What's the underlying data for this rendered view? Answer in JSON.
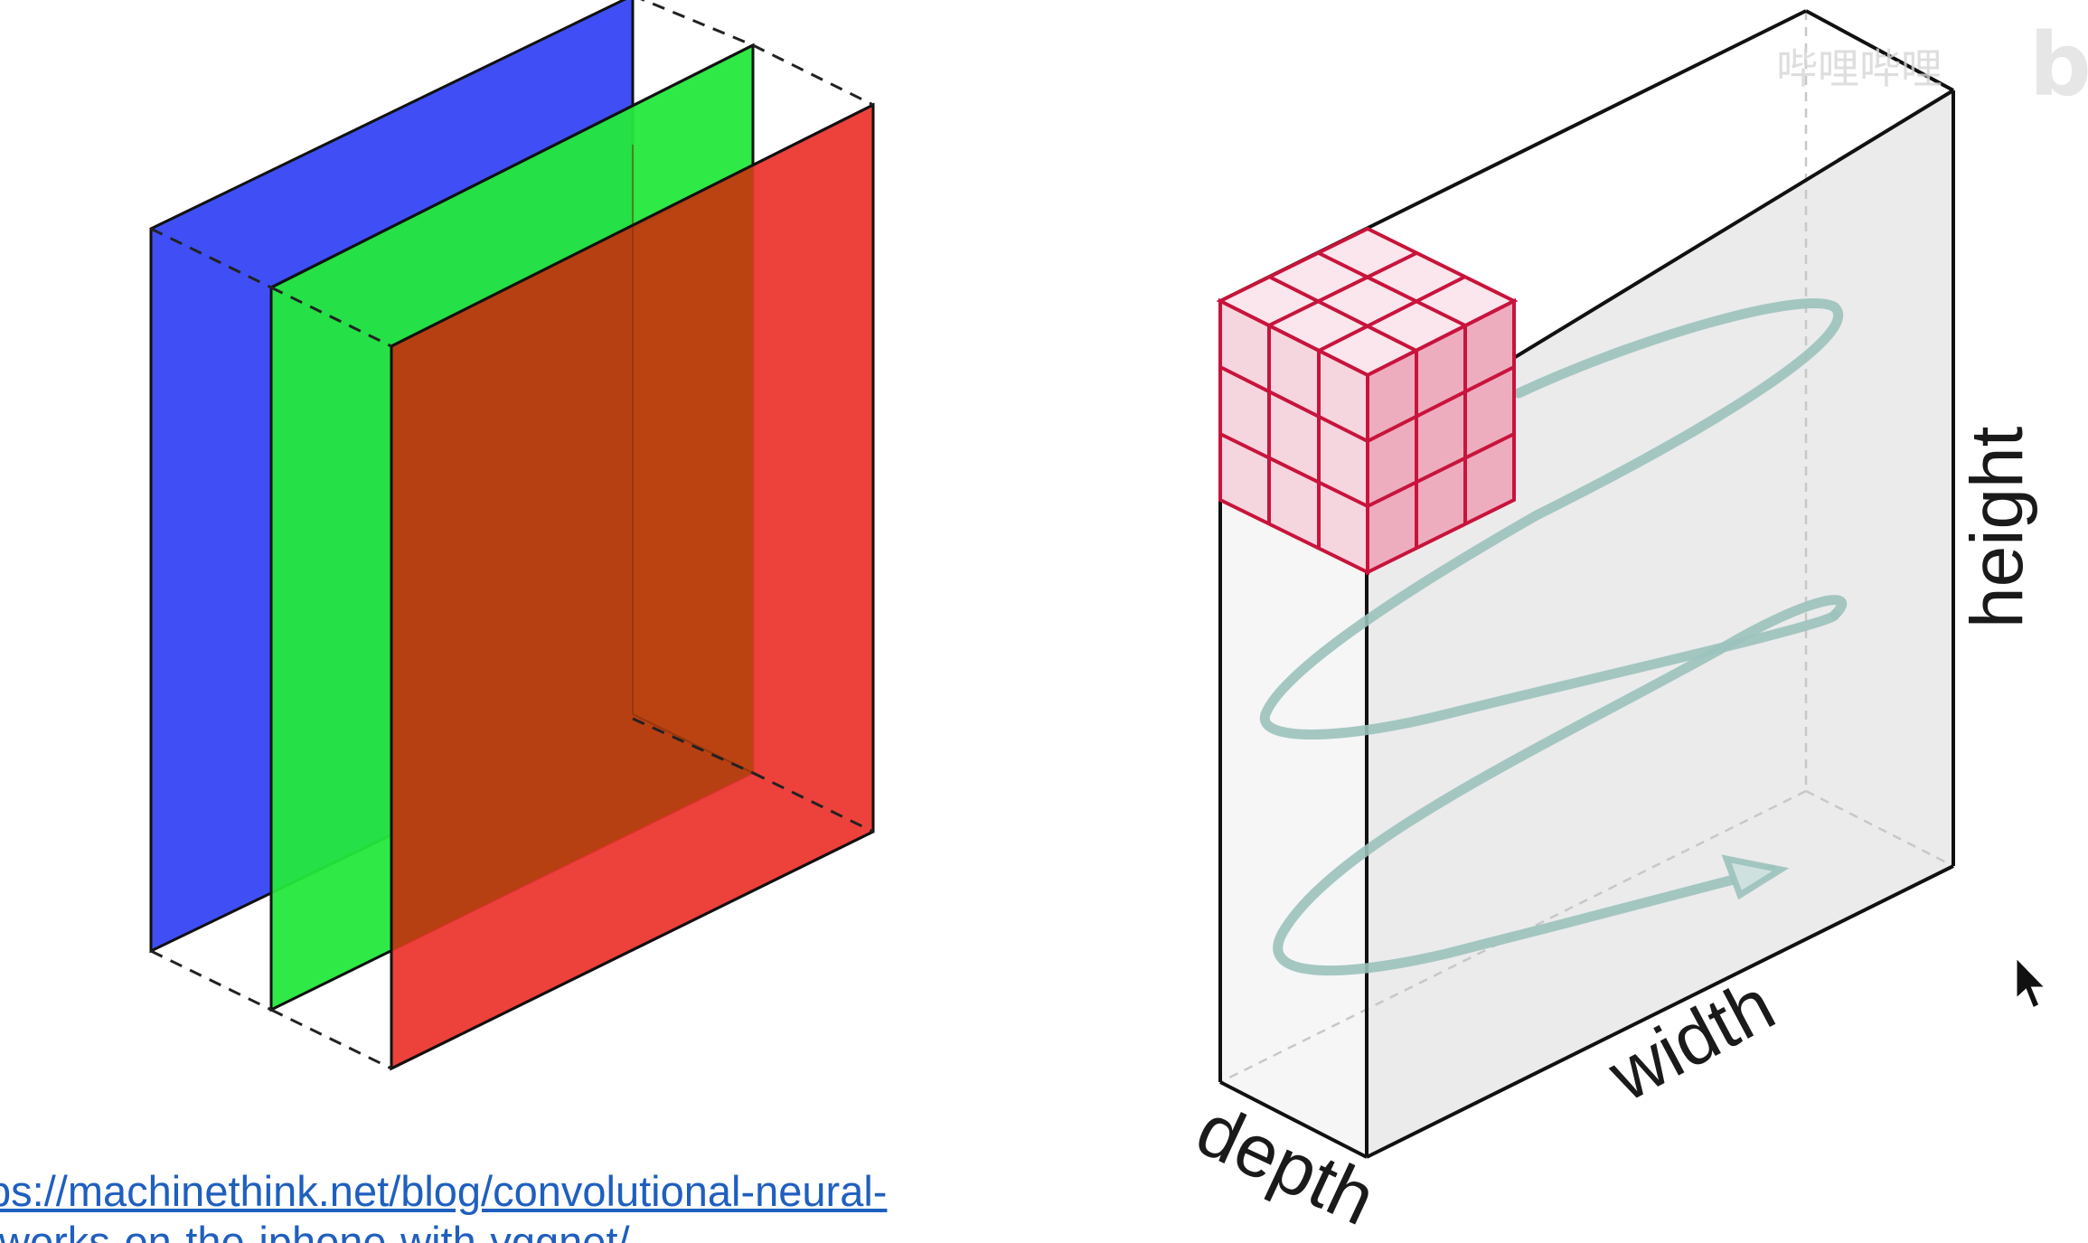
{
  "labels": {
    "height": "height",
    "width": "width",
    "depth": "depth"
  },
  "source_link": {
    "line1": "ps://machinethink.net/blog/convolutional-neural-",
    "line2": "tworks-on-the-iphone-with-vggnet/"
  },
  "watermark": {
    "text": "哔哩哔哩",
    "logo": "bili"
  },
  "colors": {
    "blue_channel": "#3f4ff5",
    "green_channel": "#24e83c",
    "red_channel": "#ee3f3a",
    "overlap_brown": "#b8400f",
    "kernel": "#c8143c",
    "kernel_fill": "#f2c4d0",
    "scan_path": "#9bc2bc",
    "volume_face": "#eeeeee",
    "link": "#1f5fbf"
  }
}
